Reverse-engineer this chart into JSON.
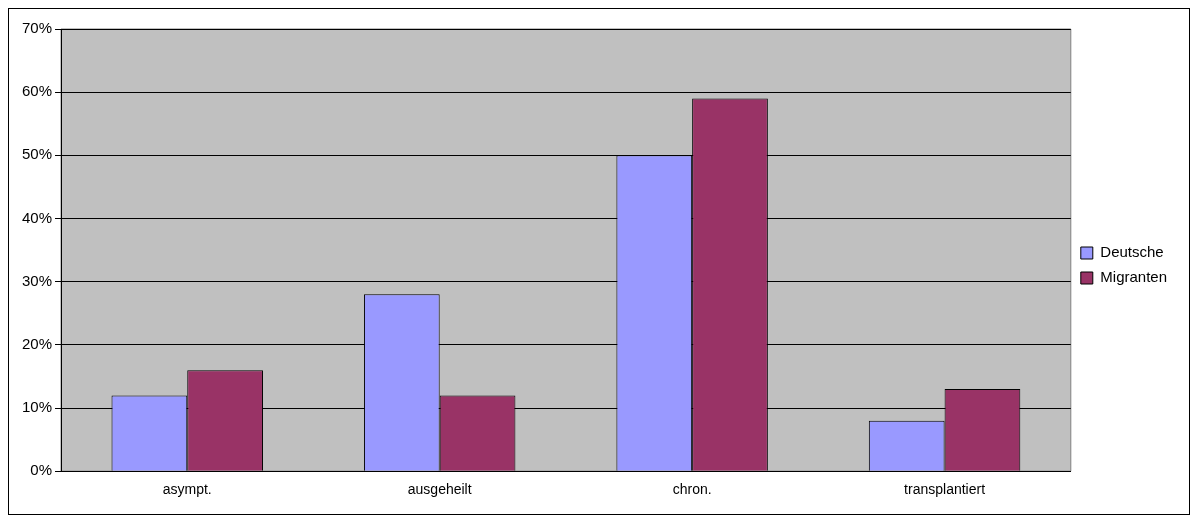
{
  "chart_data": {
    "type": "bar",
    "categories": [
      "asympt.",
      "ausgeheilt",
      "chron.",
      "transplantiert"
    ],
    "series": [
      {
        "name": "Deutsche",
        "color": "#9999ff",
        "values": [
          12,
          28,
          50,
          8
        ]
      },
      {
        "name": "Migranten",
        "color": "#993366",
        "values": [
          16,
          12,
          59,
          13
        ]
      }
    ],
    "ylim": [
      0,
      70
    ],
    "yticks": [
      {
        "value": 0,
        "label": "0%"
      },
      {
        "value": 10,
        "label": "10%"
      },
      {
        "value": 20,
        "label": "20%"
      },
      {
        "value": 30,
        "label": "30%"
      },
      {
        "value": 40,
        "label": "40%"
      },
      {
        "value": 50,
        "label": "50%"
      },
      {
        "value": 60,
        "label": "60%"
      },
      {
        "value": 70,
        "label": "70%"
      }
    ],
    "grid": "y",
    "legend": "right"
  }
}
